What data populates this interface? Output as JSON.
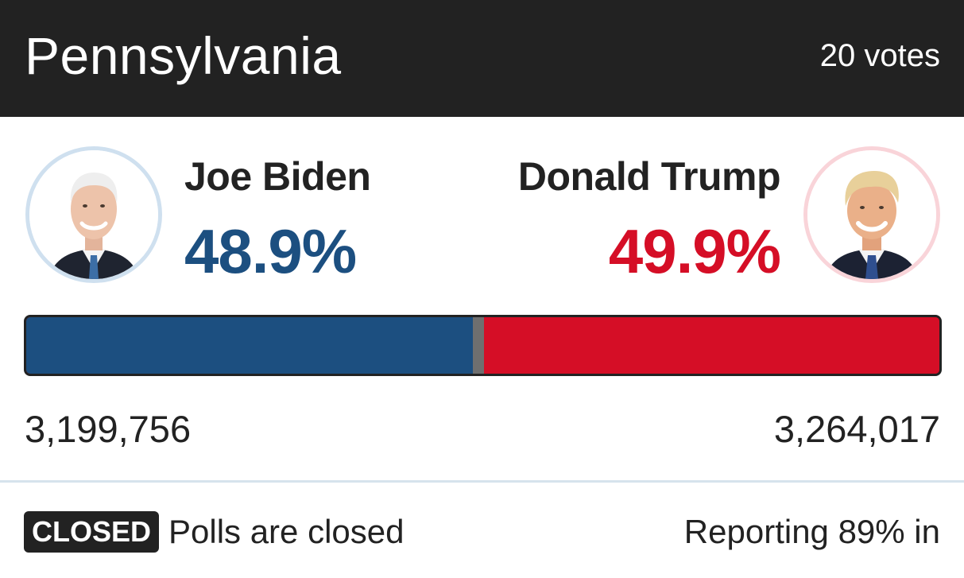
{
  "header": {
    "state": "Pennsylvania",
    "votes": "20 votes"
  },
  "candidates": [
    {
      "name": "Joe Biden",
      "percent": "48.9%",
      "votes": "3,199,756",
      "share": 48.9,
      "color": "#1c4f80",
      "ring_color": "#cfe0ef",
      "photo": "joe-biden-photo"
    },
    {
      "name": "Donald Trump",
      "percent": "49.9%",
      "votes": "3,264,017",
      "share": 49.9,
      "color": "#d50e26",
      "ring_color": "#f9d4d9",
      "photo": "donald-trump-photo"
    }
  ],
  "other_share": 1.2,
  "other_color": "#6f6f6f",
  "footer": {
    "badge": "CLOSED",
    "status": "Polls are closed",
    "reporting": "Reporting 89% in"
  }
}
